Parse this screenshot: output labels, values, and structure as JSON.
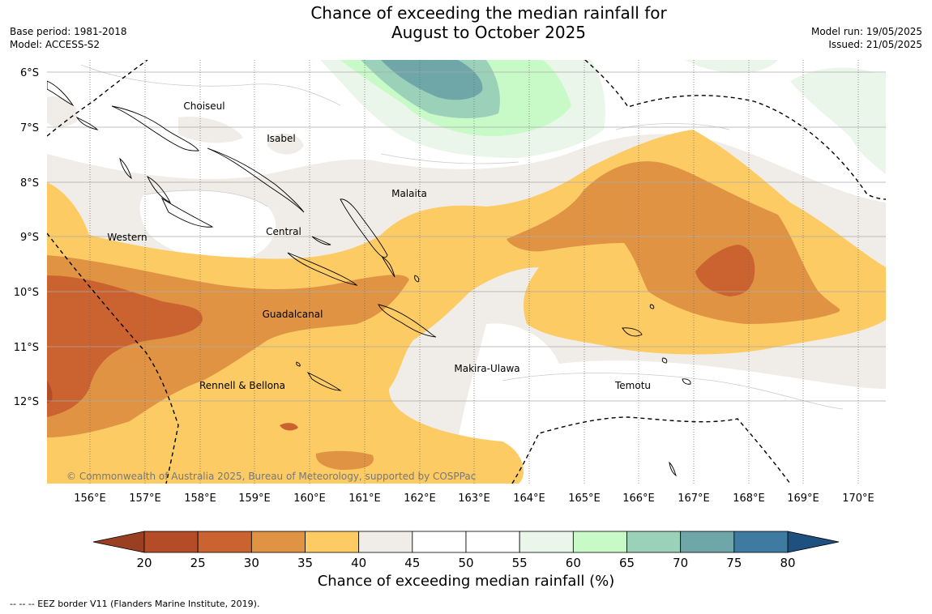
{
  "header": {
    "title_line1": "Chance of exceeding the median rainfall for",
    "title_line2": "August to October 2025",
    "base_period": "Base period: 1981-2018",
    "model": "Model: ACCESS-S2",
    "model_run": "Model run: 19/05/2025",
    "issued": "Issued: 21/05/2025"
  },
  "map": {
    "lat_labels": [
      "6°S",
      "7°S",
      "8°S",
      "9°S",
      "10°S",
      "11°S",
      "12°S"
    ],
    "lon_labels": [
      "156°E",
      "157°E",
      "158°E",
      "159°E",
      "160°E",
      "161°E",
      "162°E",
      "163°E",
      "164°E",
      "165°E",
      "166°E",
      "167°E",
      "168°E",
      "169°E",
      "170°E"
    ],
    "provinces": [
      "Choiseul",
      "Isabel",
      "Malaita",
      "Western",
      "Central",
      "Guadalcanal",
      "Makira-Ulawa",
      "Rennell & Bellona",
      "Temotu"
    ],
    "copyright": "© Commonwealth of Australia 2025, Bureau of Meteorology, supported by COSPPac"
  },
  "colorbar": {
    "title": "Chance of exceeding median rainfall (%)",
    "ticks": [
      "20",
      "25",
      "30",
      "35",
      "40",
      "45",
      "50",
      "55",
      "60",
      "65",
      "70",
      "75",
      "80"
    ],
    "colors": [
      "#b44d27",
      "#cb6331",
      "#e09443",
      "#fdcb64",
      "#f0ede8",
      "#ffffff",
      "#ffffff",
      "#eaf6ea",
      "#c8fac8",
      "#9bd1b9",
      "#6fa6a8",
      "#3f7ba0"
    ],
    "low_extend_color": "#9b3f23",
    "high_extend_color": "#1e5080"
  },
  "footnote": "-- -- -- EEZ border V11 (Flanders Marine Institute, 2019)."
}
